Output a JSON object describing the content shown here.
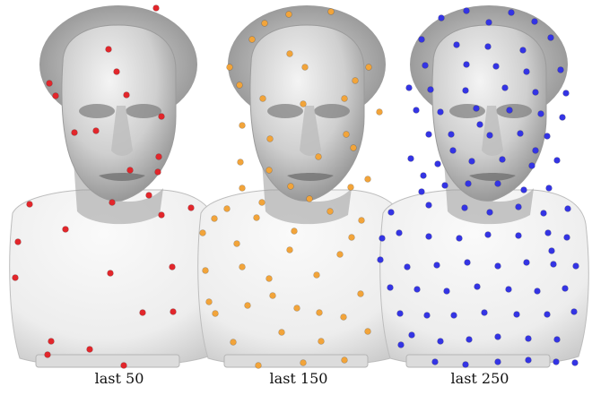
{
  "panels": [
    {
      "caption": "last 50",
      "dot_color": "#e2262b",
      "dots": [
        [
          121,
          55
        ],
        [
          174,
          9
        ],
        [
          55,
          93
        ],
        [
          141,
          106
        ],
        [
          62,
          107
        ],
        [
          180,
          130
        ],
        [
          107,
          146
        ],
        [
          83,
          148
        ],
        [
          177,
          175
        ],
        [
          145,
          190
        ],
        [
          166,
          218
        ],
        [
          125,
          226
        ],
        [
          33,
          228
        ],
        [
          213,
          232
        ],
        [
          180,
          240
        ],
        [
          73,
          256
        ],
        [
          123,
          305
        ],
        [
          192,
          298
        ],
        [
          17,
          310
        ],
        [
          159,
          349
        ],
        [
          57,
          381
        ],
        [
          138,
          408
        ],
        [
          53,
          396
        ],
        [
          100,
          390
        ],
        [
          176,
          192
        ],
        [
          130,
          80
        ],
        [
          20,
          270
        ],
        [
          193,
          348
        ]
      ]
    },
    {
      "caption": "last 150",
      "dot_color": "#f2a43a",
      "dots": [
        [
          369,
          13
        ],
        [
          322,
          16
        ],
        [
          295,
          26
        ],
        [
          281,
          44
        ],
        [
          323,
          60
        ],
        [
          256,
          75
        ],
        [
          396,
          90
        ],
        [
          411,
          75
        ],
        [
          384,
          110
        ],
        [
          293,
          110
        ],
        [
          338,
          116
        ],
        [
          423,
          125
        ],
        [
          270,
          140
        ],
        [
          386,
          150
        ],
        [
          301,
          155
        ],
        [
          355,
          175
        ],
        [
          268,
          181
        ],
        [
          300,
          190
        ],
        [
          394,
          165
        ],
        [
          324,
          208
        ],
        [
          345,
          222
        ],
        [
          391,
          209
        ],
        [
          368,
          236
        ],
        [
          292,
          226
        ],
        [
          253,
          233
        ],
        [
          239,
          244
        ],
        [
          286,
          243
        ],
        [
          328,
          258
        ],
        [
          403,
          246
        ],
        [
          392,
          265
        ],
        [
          226,
          260
        ],
        [
          264,
          272
        ],
        [
          323,
          279
        ],
        [
          379,
          284
        ],
        [
          270,
          298
        ],
        [
          229,
          302
        ],
        [
          300,
          311
        ],
        [
          353,
          307
        ],
        [
          402,
          328
        ],
        [
          233,
          337
        ],
        [
          276,
          341
        ],
        [
          331,
          344
        ],
        [
          356,
          349
        ],
        [
          383,
          354
        ],
        [
          314,
          371
        ],
        [
          260,
          382
        ],
        [
          358,
          381
        ],
        [
          410,
          370
        ],
        [
          288,
          408
        ],
        [
          338,
          405
        ],
        [
          384,
          402
        ],
        [
          240,
          350
        ],
        [
          304,
          330
        ],
        [
          270,
          210
        ],
        [
          410,
          200
        ],
        [
          340,
          75
        ],
        [
          267,
          95
        ]
      ]
    },
    {
      "caption": "last 250",
      "dot_color": "#3434e4",
      "dots": [
        [
          520,
          12
        ],
        [
          570,
          14
        ],
        [
          492,
          20
        ],
        [
          545,
          25
        ],
        [
          596,
          24
        ],
        [
          470,
          44
        ],
        [
          509,
          50
        ],
        [
          544,
          52
        ],
        [
          583,
          56
        ],
        [
          614,
          42
        ],
        [
          474,
          73
        ],
        [
          520,
          72
        ],
        [
          553,
          74
        ],
        [
          587,
          80
        ],
        [
          625,
          78
        ],
        [
          456,
          98
        ],
        [
          480,
          100
        ],
        [
          519,
          101
        ],
        [
          563,
          98
        ],
        [
          597,
          103
        ],
        [
          631,
          104
        ],
        [
          464,
          123
        ],
        [
          491,
          125
        ],
        [
          531,
          121
        ],
        [
          568,
          123
        ],
        [
          603,
          127
        ],
        [
          627,
          131
        ],
        [
          478,
          150
        ],
        [
          503,
          150
        ],
        [
          546,
          151
        ],
        [
          580,
          149
        ],
        [
          610,
          152
        ],
        [
          458,
          177
        ],
        [
          488,
          183
        ],
        [
          526,
          180
        ],
        [
          560,
          178
        ],
        [
          593,
          185
        ],
        [
          621,
          179
        ],
        [
          496,
          207
        ],
        [
          522,
          205
        ],
        [
          555,
          205
        ],
        [
          584,
          212
        ],
        [
          612,
          210
        ],
        [
          470,
          214
        ],
        [
          478,
          229
        ],
        [
          518,
          232
        ],
        [
          546,
          237
        ],
        [
          578,
          231
        ],
        [
          606,
          238
        ],
        [
          633,
          233
        ],
        [
          436,
          237
        ],
        [
          445,
          260
        ],
        [
          478,
          264
        ],
        [
          512,
          266
        ],
        [
          544,
          262
        ],
        [
          578,
          263
        ],
        [
          611,
          260
        ],
        [
          632,
          265
        ],
        [
          424,
          290
        ],
        [
          454,
          298
        ],
        [
          487,
          296
        ],
        [
          521,
          293
        ],
        [
          555,
          297
        ],
        [
          587,
          293
        ],
        [
          617,
          295
        ],
        [
          642,
          297
        ],
        [
          435,
          321
        ],
        [
          465,
          323
        ],
        [
          498,
          325
        ],
        [
          532,
          320
        ],
        [
          567,
          323
        ],
        [
          599,
          325
        ],
        [
          630,
          322
        ],
        [
          446,
          350
        ],
        [
          476,
          352
        ],
        [
          506,
          352
        ],
        [
          540,
          349
        ],
        [
          576,
          351
        ],
        [
          610,
          351
        ],
        [
          640,
          348
        ],
        [
          459,
          374
        ],
        [
          491,
          381
        ],
        [
          523,
          379
        ],
        [
          555,
          376
        ],
        [
          589,
          378
        ],
        [
          621,
          379
        ],
        [
          485,
          404
        ],
        [
          519,
          407
        ],
        [
          555,
          404
        ],
        [
          589,
          402
        ],
        [
          620,
          404
        ],
        [
          641,
          405
        ],
        [
          447,
          385
        ],
        [
          597,
          168
        ],
        [
          505,
          168
        ],
        [
          535,
          139
        ],
        [
          472,
          196
        ],
        [
          615,
          280
        ],
        [
          426,
          266
        ]
      ]
    }
  ]
}
